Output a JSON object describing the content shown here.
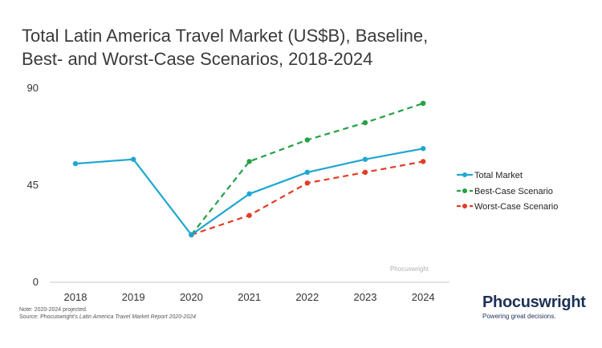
{
  "title_line1": "Total Latin America Travel Market (US$B), Baseline,",
  "title_line2": "Best- and Worst-Case Scenarios, 2018-2024",
  "notes": {
    "line1": "Note: 2020-2024 projected.",
    "line2_prefix": "Source: Phocuswright's ",
    "line2_title": "Latin America Travel Market Report 2020-2024"
  },
  "brand": {
    "name": "Phocuswright",
    "tagline": "Powering great decisions.",
    "watermark": "Phocuswright"
  },
  "chart_data": {
    "type": "line",
    "x": [
      "2018",
      "2019",
      "2020",
      "2021",
      "2022",
      "2023",
      "2024"
    ],
    "ylim": [
      0,
      90
    ],
    "yticks": [
      0,
      45,
      90
    ],
    "grid": false,
    "legend_position": "right",
    "series": [
      {
        "name": "Total Market",
        "color": "#1ea7d0",
        "dash": "solid",
        "values": [
          55,
          57,
          22,
          41,
          51,
          57,
          62
        ]
      },
      {
        "name": "Best-Case Scenario",
        "color": "#26a045",
        "dash": "dashed",
        "values": [
          null,
          null,
          22,
          56,
          66,
          74,
          83
        ]
      },
      {
        "name": "Worst-Case Scenario",
        "color": "#e23c25",
        "dash": "dashed",
        "values": [
          null,
          null,
          22,
          31,
          46,
          51,
          56
        ]
      }
    ]
  }
}
